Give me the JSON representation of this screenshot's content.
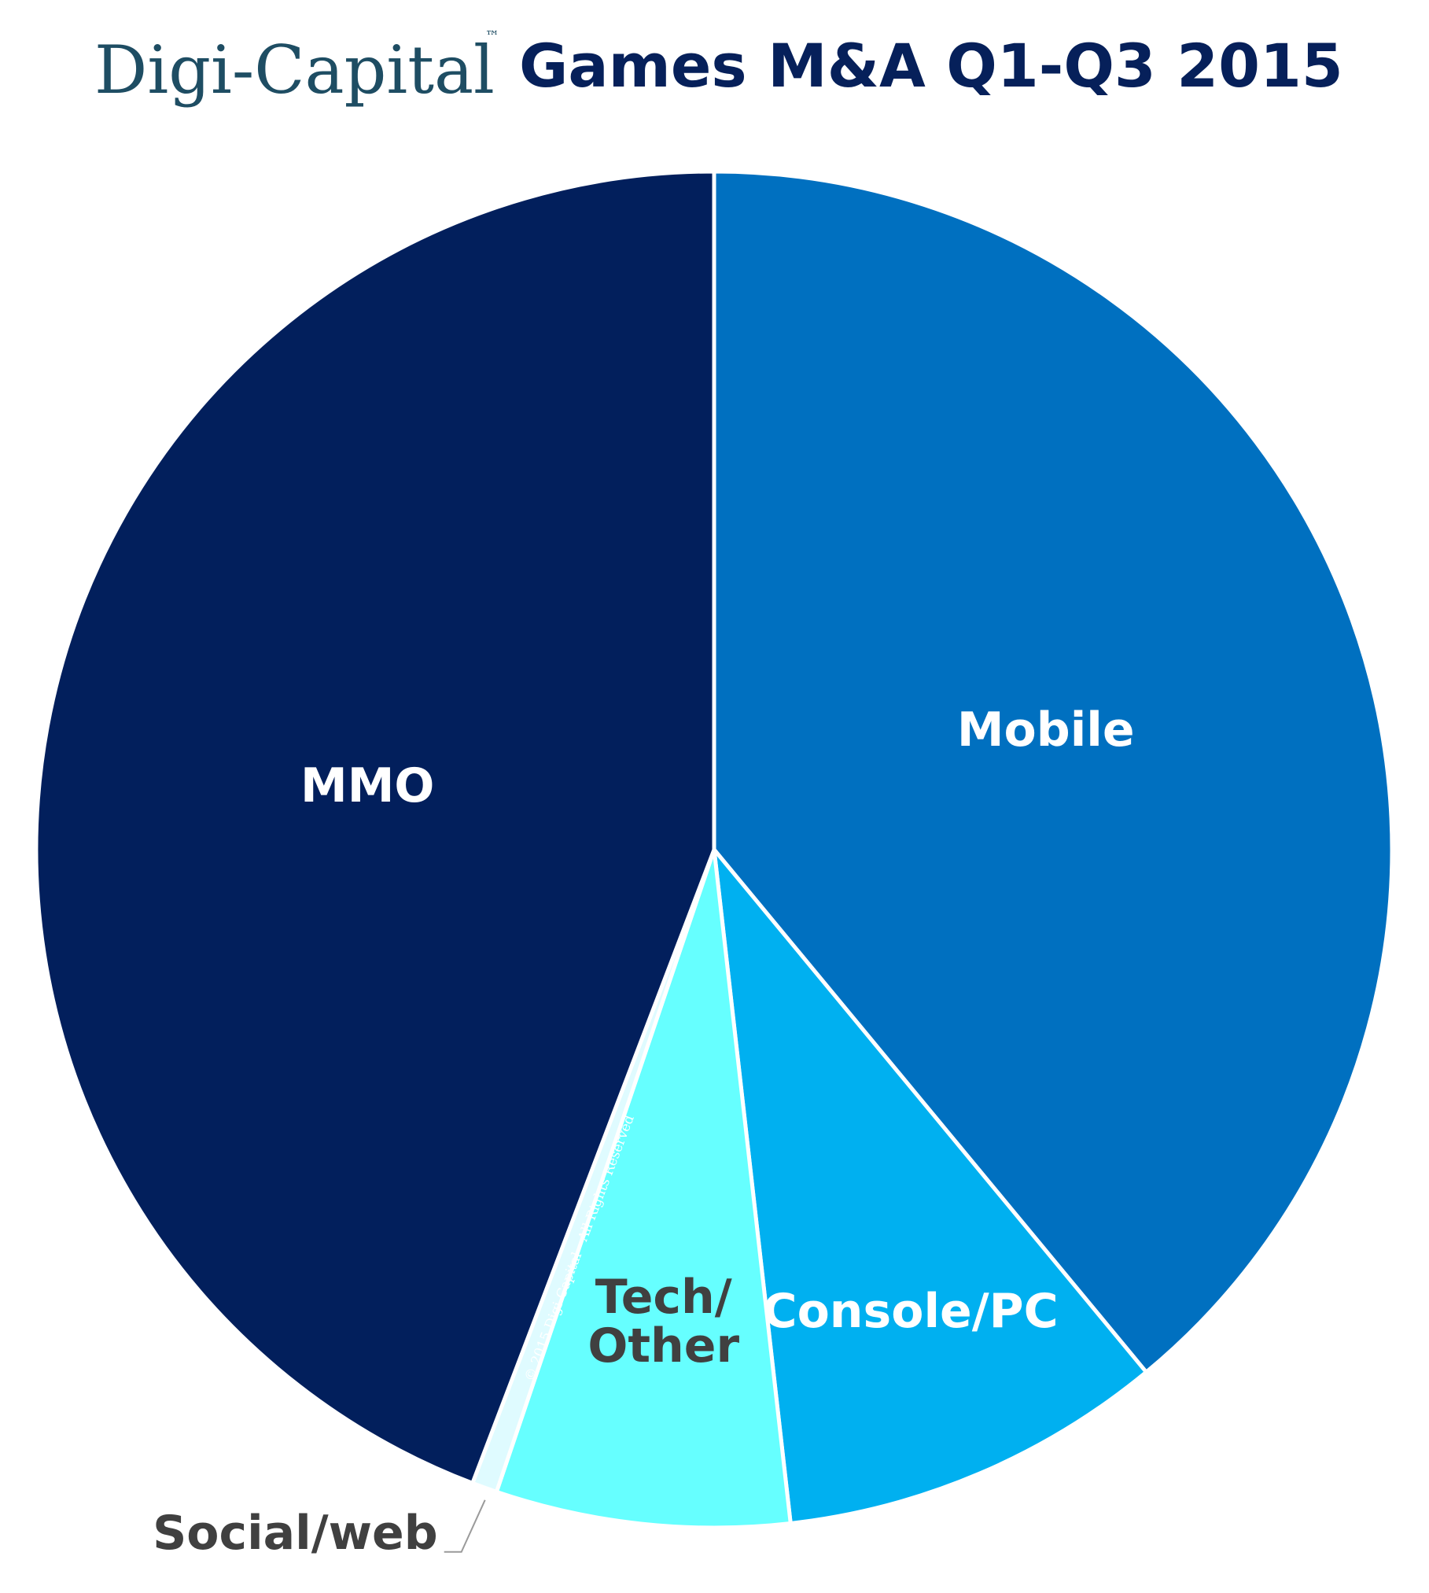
{
  "title": {
    "brand": "Digi-Capital",
    "trademark": "™",
    "main": "Games M&A Q1-Q3 2015"
  },
  "copyright": "© 2015 Digi-Capital - All Rights Reserved",
  "colors": {
    "brand": "#1e4d63",
    "title": "#06205a",
    "slice_border": "#ffffff"
  },
  "chart_data": {
    "type": "pie",
    "start": "12 o'clock",
    "direction": "clockwise",
    "legend": "none",
    "slices": [
      {
        "label": "Mobile",
        "value": 39.0,
        "color": "#0070c0",
        "label_color": "#ffffff"
      },
      {
        "label": "Console/PC",
        "value": 9.2,
        "color": "#00b0f0",
        "label_color": "#ffffff"
      },
      {
        "label": "Tech/Other",
        "lines": [
          "Tech/",
          "Other"
        ],
        "value": 7.0,
        "color": "#66ffff",
        "label_color": "#404040"
      },
      {
        "label": "Social/web",
        "value": 0.6,
        "color": "#dffbff",
        "label_color": "#404040"
      },
      {
        "label": "MMO",
        "value": 44.2,
        "color": "#021f5c",
        "label_color": "#ffffff"
      }
    ]
  }
}
